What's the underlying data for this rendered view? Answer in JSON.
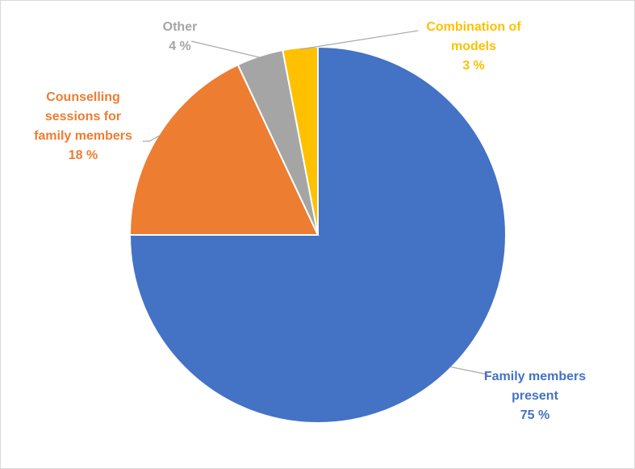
{
  "chart_data": {
    "type": "pie",
    "start_angle_deg": 0,
    "direction": "clockwise",
    "slices": [
      {
        "lines": [
          "Family members",
          "present"
        ],
        "value": 75,
        "value_label": "75 %",
        "color": "#4472C4"
      },
      {
        "lines": [
          "Counselling",
          "sessions for",
          "family members"
        ],
        "value": 18,
        "value_label": "18 %",
        "color": "#ED7D31"
      },
      {
        "lines": [
          "Other"
        ],
        "value": 4,
        "value_label": "4 %",
        "color": "#A5A5A5"
      },
      {
        "lines": [
          "Combination of",
          "models"
        ],
        "value": 3,
        "value_label": "3 %",
        "color": "#FFC000"
      }
    ]
  }
}
